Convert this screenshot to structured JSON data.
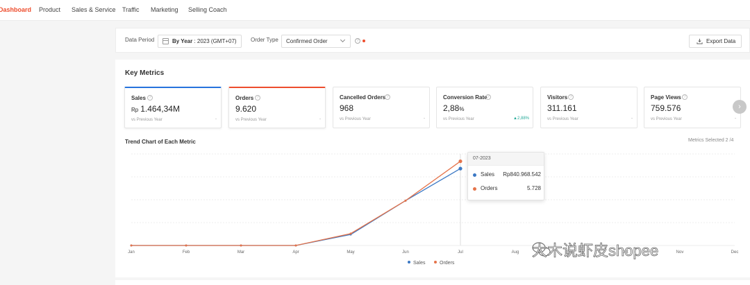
{
  "nav": {
    "items": [
      "Dashboard",
      "Product",
      "Sales & Service",
      "Traffic",
      "Marketing",
      "Selling Coach"
    ]
  },
  "filters": {
    "data_period_label": "Data Period",
    "period_value": "By Year : 2023 (GMT+07)",
    "period_bold": "By Year",
    "period_rest": " :  2023 (GMT+07)",
    "order_type_label": "Order Type",
    "order_type_value": "Confirmed Order",
    "export_label": "Export Data"
  },
  "key_metrics": {
    "title": "Key Metrics",
    "items": [
      {
        "label": "Sales",
        "prefix": "Rp",
        "value": "1.464,34M",
        "vs": "vs Previous Year",
        "change": "-",
        "accent": "#2673dd"
      },
      {
        "label": "Orders",
        "value": "9.620",
        "vs": "vs Previous Year",
        "change": "-",
        "accent": "#ee4d2d"
      },
      {
        "label": "Cancelled Orders",
        "value": "968",
        "vs": "vs Previous Year",
        "change": "-"
      },
      {
        "label": "Conversion Rate",
        "value": "2,88",
        "suffix": "%",
        "vs": "vs Previous Year",
        "change": "▲2,88%"
      },
      {
        "label": "Visitors",
        "value": "311.161",
        "vs": "vs Previous Year",
        "change": "-"
      },
      {
        "label": "Page Views",
        "value": "759.576",
        "vs": "vs Previous Year",
        "change": "-"
      }
    ],
    "next_arrow": "›"
  },
  "trend": {
    "title": "Trend Chart of Each Metric",
    "metrics_selected": "Metrics Selected 2 /4"
  },
  "tooltip": {
    "date": "07-2023",
    "rows": [
      {
        "name": "Sales",
        "value": "Rp840.968.542"
      },
      {
        "name": "Orders",
        "value": "5.728"
      }
    ]
  },
  "watermark": "大木说虾皮shopee",
  "chart_data": {
    "type": "line",
    "categories": [
      "Jan",
      "Feb",
      "Mar",
      "Apr",
      "May",
      "Jun",
      "Jul",
      "Aug",
      "Sep",
      "Oct",
      "Nov",
      "Dec"
    ],
    "series": [
      {
        "name": "Sales",
        "color": "#3b78c4",
        "values": [
          0,
          0,
          0,
          0,
          0.12,
          0.49,
          0.84,
          null,
          null,
          null,
          null,
          null
        ]
      },
      {
        "name": "Orders",
        "color": "#e5734a",
        "values": [
          0,
          0,
          0,
          0,
          0.13,
          0.49,
          0.92,
          null,
          null,
          null,
          null,
          null
        ]
      }
    ],
    "grid": true,
    "legend": "bottom-center",
    "xlabel": "",
    "ylabel": ""
  }
}
